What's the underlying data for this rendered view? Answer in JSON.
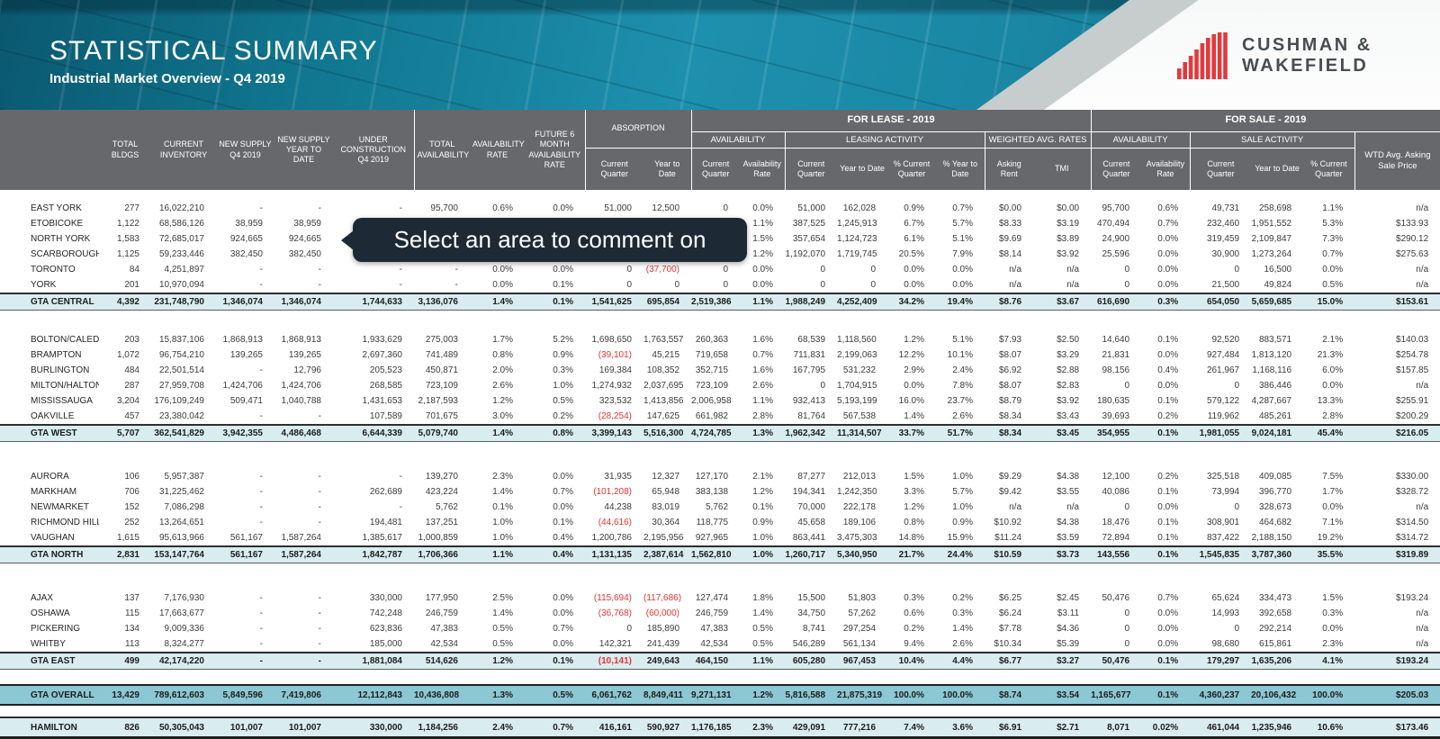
{
  "header": {
    "title": "STATISTICAL SUMMARY",
    "subtitle": "Industrial Market Overview - Q4 2019",
    "logo_line1": "CUSHMAN &",
    "logo_line2": "WAKEFIELD"
  },
  "tooltip": {
    "text": "Select an area to comment on"
  },
  "colors": {
    "banner_teal": "#1d90ae",
    "header_gray": "#67686b",
    "subtotal_blue": "#d9edf1",
    "overall_teal": "#8cc7d4",
    "negative_red": "#e53531",
    "logo_red": "#e03a3e"
  },
  "thead": {
    "big": [
      "TOTAL BLDGS",
      "CURRENT INVENTORY",
      "NEW SUPPLY Q4 2019",
      "NEW SUPPLY YEAR TO DATE",
      "UNDER CONSTRUCTION Q4 2019",
      "TOTAL AVAILABILITY",
      "AVAILABILITY RATE",
      "FUTURE 6 MONTH AVAILABILITY RATE"
    ],
    "absorption": "ABSORPTION",
    "for_lease": "FOR LEASE - 2019",
    "for_sale": "FOR SALE - 2019",
    "lease_groups": [
      "AVAILABILITY",
      "LEASING ACTIVITY",
      "WEIGHTED AVG. RATES"
    ],
    "sale_groups": [
      "AVAILABILITY",
      "SALE ACTIVITY"
    ],
    "wtd": "WTD Avg. Asking Sale Price",
    "sub": {
      "absorption": [
        "Current Quarter",
        "Year to Date"
      ],
      "lease_avail": [
        "Current Quarter",
        "Availability Rate"
      ],
      "leasing": [
        "Current Quarter",
        "Year to Date",
        "% Current Quarter",
        "% Year to Date"
      ],
      "rates": [
        "Asking Rent",
        "TMI"
      ],
      "sale_avail": [
        "Current Quarter",
        "Availability Rate"
      ],
      "sale_act": [
        "Current Quarter",
        "Year to Date",
        "% Current Quarter"
      ]
    }
  },
  "table": {
    "sections": [
      {
        "rows": [
          {
            "label": "EAST YORK",
            "v": [
              "277",
              "16,022,210",
              "-",
              "-",
              "-",
              "95,700",
              "0.6%",
              "0.0%",
              "51,000",
              "12,500",
              "0",
              "0.0%",
              "51,000",
              "162,028",
              "0.9%",
              "0.7%",
              "$0.00",
              "$0.00",
              "95,700",
              "0.6%",
              "49,731",
              "258,698",
              "1.1%",
              "n/a"
            ]
          },
          {
            "label": "ETOBICOKE",
            "v": [
              "1,122",
              "68,586,126",
              "38,959",
              "38,959",
              "",
              "",
              "",
              "",
              "",
              "",
              "",
              "1.1%",
              "387,525",
              "1,245,913",
              "6.7%",
              "5.7%",
              "$8.33",
              "$3.19",
              "470,494",
              "0.7%",
              "232,460",
              "1,951,552",
              "5.3%",
              "$133.93"
            ]
          },
          {
            "label": "NORTH YORK",
            "v": [
              "1,583",
              "72,685,017",
              "924,665",
              "924,665",
              "",
              "",
              "",
              "",
              "",
              "",
              "",
              "1.5%",
              "357,654",
              "1,124,723",
              "6.1%",
              "5.1%",
              "$9.69",
              "$3.89",
              "24,900",
              "0.0%",
              "319,459",
              "2,109,847",
              "7.3%",
              "$290.12"
            ]
          },
          {
            "label": "SCARBOROUGH",
            "v": [
              "1,125",
              "59,233,446",
              "382,450",
              "382,450",
              "",
              "",
              "",
              "",
              "",
              "",
              "",
              "1.2%",
              "1,192,070",
              "1,719,745",
              "20.5%",
              "7.9%",
              "$8.14",
              "$3.92",
              "25,596",
              "0.0%",
              "30,900",
              "1,273,264",
              "0.7%",
              "$275.63"
            ]
          },
          {
            "label": "TORONTO",
            "v": [
              "84",
              "4,251,897",
              "-",
              "-",
              "-",
              "-",
              "0.0%",
              "0.0%",
              "0",
              "(37,700)",
              "0",
              "0.0%",
              "0",
              "0",
              "0.0%",
              "0.0%",
              "n/a",
              "n/a",
              "0",
              "0.0%",
              "0",
              "16,500",
              "0.0%",
              "n/a"
            ]
          },
          {
            "label": "YORK",
            "v": [
              "201",
              "10,970,094",
              "-",
              "-",
              "-",
              "-",
              "0.0%",
              "0.1%",
              "0",
              "0",
              "0",
              "0.0%",
              "0",
              "0",
              "0.0%",
              "0.0%",
              "n/a",
              "n/a",
              "0",
              "0.0%",
              "21,500",
              "49,824",
              "0.5%",
              "n/a"
            ]
          }
        ],
        "total": {
          "label": "GTA CENTRAL",
          "v": [
            "4,392",
            "231,748,790",
            "1,346,074",
            "1,346,074",
            "1,744,633",
            "3,136,076",
            "1.4%",
            "0.1%",
            "1,541,625",
            "695,854",
            "2,519,386",
            "1.1%",
            "1,988,249",
            "4,252,409",
            "34.2%",
            "19.4%",
            "$8.76",
            "$3.67",
            "616,690",
            "0.3%",
            "654,050",
            "5,659,685",
            "15.0%",
            "$153.61"
          ]
        }
      },
      {
        "rows": [
          {
            "label": "BOLTON/CALEDON",
            "v": [
              "203",
              "15,837,106",
              "1,868,913",
              "1,868,913",
              "1,933,629",
              "275,003",
              "1.7%",
              "5.2%",
              "1,698,650",
              "1,763,557",
              "260,363",
              "1.6%",
              "68,539",
              "1,118,560",
              "1.2%",
              "5.1%",
              "$7.93",
              "$2.50",
              "14,640",
              "0.1%",
              "92,520",
              "883,571",
              "2.1%",
              "$140.03"
            ]
          },
          {
            "label": "BRAMPTON",
            "v": [
              "1,072",
              "96,754,210",
              "139,265",
              "139,265",
              "2,697,360",
              "741,489",
              "0.8%",
              "0.9%",
              "(39,101)",
              "45,215",
              "719,658",
              "0.7%",
              "711,831",
              "2,199,063",
              "12.2%",
              "10.1%",
              "$8.07",
              "$3.29",
              "21,831",
              "0.0%",
              "927,484",
              "1,813,120",
              "21.3%",
              "$254.78"
            ]
          },
          {
            "label": "BURLINGTON",
            "v": [
              "484",
              "22,501,514",
              "-",
              "12,796",
              "205,523",
              "450,871",
              "2.0%",
              "0.3%",
              "169,384",
              "108,352",
              "352,715",
              "1.6%",
              "167,795",
              "531,232",
              "2.9%",
              "2.4%",
              "$6.92",
              "$2.88",
              "98,156",
              "0.4%",
              "261,967",
              "1,168,116",
              "6.0%",
              "$157.85"
            ]
          },
          {
            "label": "MILTON/HALTON HILLS",
            "v": [
              "287",
              "27,959,708",
              "1,424,706",
              "1,424,706",
              "268,585",
              "723,109",
              "2.6%",
              "1.0%",
              "1,274,932",
              "2,037,695",
              "723,109",
              "2.6%",
              "0",
              "1,704,915",
              "0.0%",
              "7.8%",
              "$8.07",
              "$2.83",
              "0",
              "0.0%",
              "0",
              "386,446",
              "0.0%",
              "n/a"
            ]
          },
          {
            "label": "MISSISSAUGA",
            "v": [
              "3,204",
              "176,109,249",
              "509,471",
              "1,040,788",
              "1,431,653",
              "2,187,593",
              "1.2%",
              "0.5%",
              "323,532",
              "1,413,856",
              "2,006,958",
              "1.1%",
              "932,413",
              "5,193,199",
              "16.0%",
              "23.7%",
              "$8.79",
              "$3.92",
              "180,635",
              "0.1%",
              "579,122",
              "4,287,667",
              "13.3%",
              "$255.91"
            ]
          },
          {
            "label": "OAKVILLE",
            "v": [
              "457",
              "23,380,042",
              "-",
              "-",
              "107,589",
              "701,675",
              "3.0%",
              "0.2%",
              "(28,254)",
              "147,625",
              "661,982",
              "2.8%",
              "81,764",
              "567,538",
              "1.4%",
              "2.6%",
              "$8.34",
              "$3.43",
              "39,693",
              "0.2%",
              "119,962",
              "485,261",
              "2.8%",
              "$200.29"
            ]
          }
        ],
        "total": {
          "label": "GTA WEST",
          "v": [
            "5,707",
            "362,541,829",
            "3,942,355",
            "4,486,468",
            "6,644,339",
            "5,079,740",
            "1.4%",
            "0.8%",
            "3,399,143",
            "5,516,300",
            "4,724,785",
            "1.3%",
            "1,962,342",
            "11,314,507",
            "33.7%",
            "51.7%",
            "$8.34",
            "$3.45",
            "354,955",
            "0.1%",
            "1,981,055",
            "9,024,181",
            "45.4%",
            "$216.05"
          ]
        }
      },
      {
        "rows": [
          {
            "label": "AURORA",
            "v": [
              "106",
              "5,957,387",
              "-",
              "-",
              "-",
              "139,270",
              "2.3%",
              "0.0%",
              "31,935",
              "12,327",
              "127,170",
              "2.1%",
              "87,277",
              "212,013",
              "1.5%",
              "1.0%",
              "$9.29",
              "$4.38",
              "12,100",
              "0.2%",
              "325,518",
              "409,085",
              "7.5%",
              "$330.00"
            ]
          },
          {
            "label": "MARKHAM",
            "v": [
              "706",
              "31,225,462",
              "-",
              "-",
              "262,689",
              "423,224",
              "1.4%",
              "0.7%",
              "(101,208)",
              "65,948",
              "383,138",
              "1.2%",
              "194,341",
              "1,242,350",
              "3.3%",
              "5.7%",
              "$9.42",
              "$3.55",
              "40,086",
              "0.1%",
              "73,994",
              "396,770",
              "1.7%",
              "$328.72"
            ]
          },
          {
            "label": "NEWMARKET",
            "v": [
              "152",
              "7,086,298",
              "-",
              "-",
              "-",
              "5,762",
              "0.1%",
              "0.0%",
              "44,238",
              "83,019",
              "5,762",
              "0.1%",
              "70,000",
              "222,178",
              "1.2%",
              "1.0%",
              "n/a",
              "n/a",
              "0",
              "0.0%",
              "0",
              "328,673",
              "0.0%",
              "n/a"
            ]
          },
          {
            "label": "RICHMOND HILL",
            "v": [
              "252",
              "13,264,651",
              "-",
              "-",
              "194,481",
              "137,251",
              "1.0%",
              "0.1%",
              "(44,616)",
              "30,364",
              "118,775",
              "0.9%",
              "45,658",
              "189,106",
              "0.8%",
              "0.9%",
              "$10.92",
              "$4.38",
              "18,476",
              "0.1%",
              "308,901",
              "464,682",
              "7.1%",
              "$314.50"
            ]
          },
          {
            "label": "VAUGHAN",
            "v": [
              "1,615",
              "95,613,966",
              "561,167",
              "1,587,264",
              "1,385,617",
              "1,000,859",
              "1.0%",
              "0.4%",
              "1,200,786",
              "2,195,956",
              "927,965",
              "1.0%",
              "863,441",
              "3,475,303",
              "14.8%",
              "15.9%",
              "$11.24",
              "$3.59",
              "72,894",
              "0.1%",
              "837,422",
              "2,188,150",
              "19.2%",
              "$314.72"
            ]
          }
        ],
        "total": {
          "label": "GTA NORTH",
          "v": [
            "2,831",
            "153,147,764",
            "561,167",
            "1,587,264",
            "1,842,787",
            "1,706,366",
            "1.1%",
            "0.4%",
            "1,131,135",
            "2,387,614",
            "1,562,810",
            "1.0%",
            "1,260,717",
            "5,340,950",
            "21.7%",
            "24.4%",
            "$10.59",
            "$3.73",
            "143,556",
            "0.1%",
            "1,545,835",
            "3,787,360",
            "35.5%",
            "$319.89"
          ]
        }
      },
      {
        "rows": [
          {
            "label": "AJAX",
            "v": [
              "137",
              "7,176,930",
              "-",
              "-",
              "330,000",
              "177,950",
              "2.5%",
              "0.0%",
              "(115,694)",
              "(117,686)",
              "127,474",
              "1.8%",
              "15,500",
              "51,803",
              "0.3%",
              "0.2%",
              "$6.25",
              "$2.45",
              "50,476",
              "0.7%",
              "65,624",
              "334,473",
              "1.5%",
              "$193.24"
            ]
          },
          {
            "label": "OSHAWA",
            "v": [
              "115",
              "17,663,677",
              "-",
              "-",
              "742,248",
              "246,759",
              "1.4%",
              "0.0%",
              "(36,768)",
              "(60,000)",
              "246,759",
              "1.4%",
              "34,750",
              "57,262",
              "0.6%",
              "0.3%",
              "$6.24",
              "$3.11",
              "0",
              "0.0%",
              "14,993",
              "392,658",
              "0.3%",
              "n/a"
            ]
          },
          {
            "label": "PICKERING",
            "v": [
              "134",
              "9,009,336",
              "-",
              "-",
              "623,836",
              "47,383",
              "0.5%",
              "0.7%",
              "0",
              "185,890",
              "47,383",
              "0.5%",
              "8,741",
              "297,254",
              "0.2%",
              "1.4%",
              "$7.78",
              "$4.36",
              "0",
              "0.0%",
              "0",
              "292,214",
              "0.0%",
              "n/a"
            ]
          },
          {
            "label": "WHITBY",
            "v": [
              "113",
              "8,324,277",
              "-",
              "-",
              "185,000",
              "42,534",
              "0.5%",
              "0.0%",
              "142,321",
              "241,439",
              "42,534",
              "0.5%",
              "546,289",
              "561,134",
              "9.4%",
              "2.6%",
              "$10.34",
              "$5.39",
              "0",
              "0.0%",
              "98,680",
              "615,861",
              "2.3%",
              "n/a"
            ]
          }
        ],
        "total": {
          "label": "GTA EAST",
          "v": [
            "499",
            "42,174,220",
            "-",
            "-",
            "1,881,084",
            "514,626",
            "1.2%",
            "0.1%",
            "(10,141)",
            "249,643",
            "464,150",
            "1.1%",
            "605,280",
            "967,453",
            "10.4%",
            "4.4%",
            "$6.77",
            "$3.27",
            "50,476",
            "0.1%",
            "179,297",
            "1,635,206",
            "4.1%",
            "$193.24"
          ]
        }
      }
    ],
    "overall": {
      "label": "GTA OVERALL",
      "v": [
        "13,429",
        "789,612,603",
        "5,849,596",
        "7,419,806",
        "12,112,843",
        "10,436,808",
        "1.3%",
        "0.5%",
        "6,061,762",
        "8,849,411",
        "9,271,131",
        "1.2%",
        "5,816,588",
        "21,875,319",
        "100.0%",
        "100.0%",
        "$8.74",
        "$3.54",
        "1,165,677",
        "0.1%",
        "4,360,237",
        "20,106,432",
        "100.0%",
        "$205.03"
      ]
    },
    "hamilton": {
      "label": "HAMILTON",
      "v": [
        "826",
        "50,305,043",
        "101,007",
        "101,007",
        "330,000",
        "1,184,256",
        "2.4%",
        "0.7%",
        "416,161",
        "590,927",
        "1,176,185",
        "2.3%",
        "429,091",
        "777,216",
        "7.4%",
        "3.6%",
        "$6.91",
        "$2.71",
        "8,071",
        "0.02%",
        "461,044",
        "1,235,946",
        "10.6%",
        "$173.46"
      ]
    }
  }
}
